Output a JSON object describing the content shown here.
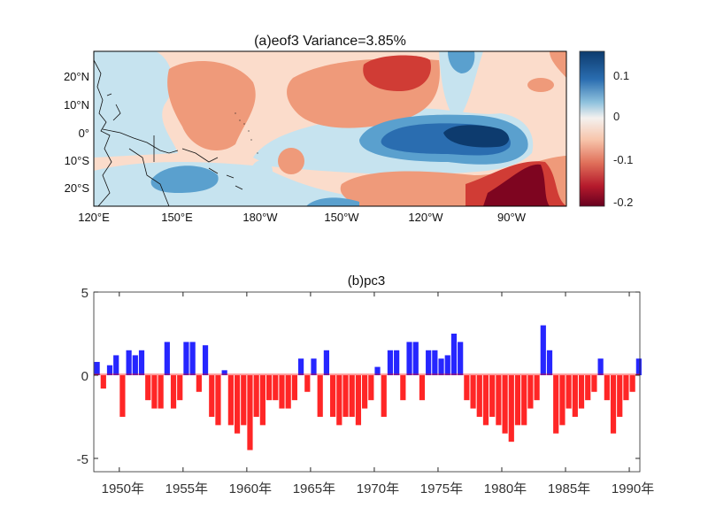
{
  "chart_data": [
    {
      "type": "heatmap",
      "title": "(a)eof3  Variance=3.85%",
      "x_ticks": [
        "120°E",
        "150°E",
        "180°W",
        "150°W",
        "120°W",
        "90°W"
      ],
      "y_ticks": [
        "20°N",
        "10°N",
        "0°",
        "10°S",
        "20°S"
      ],
      "colorbar": {
        "ticks": [
          0.1,
          0,
          -0.1,
          -0.2
        ],
        "range": [
          -0.2,
          0.15
        ]
      },
      "levels_colors": {
        "0.15": "#0d3b6e",
        "0.1": "#2a6db0",
        "0.05": "#5aa0ce",
        "0": "#c6e3ef",
        "-0.05": "#fbdccb",
        "-0.1": "#ef9a7a",
        "-0.15": "#d03c35",
        "-0.2": "#7e0520"
      },
      "features": {
        "coastlines": true,
        "grid": false
      }
    },
    {
      "type": "bar",
      "title": "(b)pc3",
      "xlabel": "",
      "ylabel": "",
      "ylim": [
        -5.8,
        5
      ],
      "y_ticks": [
        5,
        0,
        -5
      ],
      "x_tick_labels": [
        "1950年",
        "1955年",
        "1960年",
        "1965年",
        "1970年",
        "1975年",
        "1980年",
        "1985年",
        "1990年"
      ],
      "x_ticks": [
        1950,
        1955,
        1960,
        1965,
        1970,
        1975,
        1980,
        1985,
        1990
      ],
      "xlim": [
        1948.0,
        1990.83
      ],
      "positive_color": "#0000ff",
      "negative_color": "#ff0000",
      "grid": false,
      "x_start": 1948.0,
      "x_step": 0.5,
      "values": [
        0.8,
        -0.8,
        0.6,
        1.2,
        -2.5,
        1.5,
        1.2,
        1.5,
        -1.5,
        -2.0,
        -2.0,
        2.0,
        -2.0,
        -1.5,
        2.0,
        2.0,
        -1.0,
        1.8,
        -2.5,
        -3.0,
        0.3,
        -3.0,
        -3.5,
        -3.0,
        -4.5,
        -2.5,
        -3.0,
        -1.5,
        -1.5,
        -2.0,
        -2.0,
        -1.5,
        1.0,
        -1.0,
        1.0,
        -2.5,
        1.5,
        -2.5,
        -3.0,
        -2.5,
        -2.5,
        -3.0,
        -2.0,
        -1.5,
        0.5,
        -2.5,
        1.5,
        1.5,
        -1.5,
        2.0,
        2.0,
        -1.5,
        1.5,
        1.5,
        1.0,
        1.2,
        2.5,
        2.0,
        -1.5,
        -2.0,
        -2.5,
        -3.0,
        -2.5,
        -3.0,
        -3.5,
        -4.0,
        -3.0,
        -3.0,
        -2.0,
        -1.5,
        3.0,
        1.5,
        -3.5,
        -3.0,
        -2.0,
        -2.5,
        -2.0,
        -1.5,
        -1.0,
        1.0,
        -1.5,
        -3.5,
        -2.5,
        -1.5,
        -1.0,
        1.0
      ]
    }
  ]
}
